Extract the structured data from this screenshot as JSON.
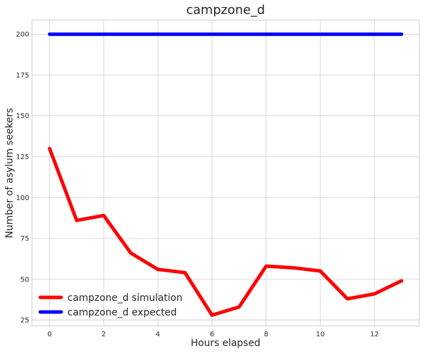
{
  "chart_data": {
    "type": "line",
    "title": "campzone_d",
    "xlabel": "Hours elapsed",
    "ylabel": "Number of asylum seekers",
    "x": [
      0,
      1,
      2,
      3,
      4,
      5,
      6,
      7,
      8,
      9,
      10,
      11,
      12,
      13
    ],
    "xlim": [
      -0.65,
      13.65
    ],
    "ylim": [
      21.4,
      208.6
    ],
    "xticks": [
      0,
      2,
      4,
      6,
      8,
      10,
      12
    ],
    "yticks": [
      25,
      50,
      75,
      100,
      125,
      150,
      175,
      200
    ],
    "grid": true,
    "legend_position": "lower-left",
    "series": [
      {
        "name": "campzone_d simulation",
        "color": "#ff0000",
        "values": [
          130,
          86,
          89,
          66,
          56,
          54,
          28,
          33,
          58,
          57,
          55,
          38,
          41,
          49
        ]
      },
      {
        "name": "campzone_d expected",
        "color": "#0000ff",
        "values": [
          200,
          200,
          200,
          200,
          200,
          200,
          200,
          200,
          200,
          200,
          200,
          200,
          200,
          200
        ]
      }
    ]
  }
}
